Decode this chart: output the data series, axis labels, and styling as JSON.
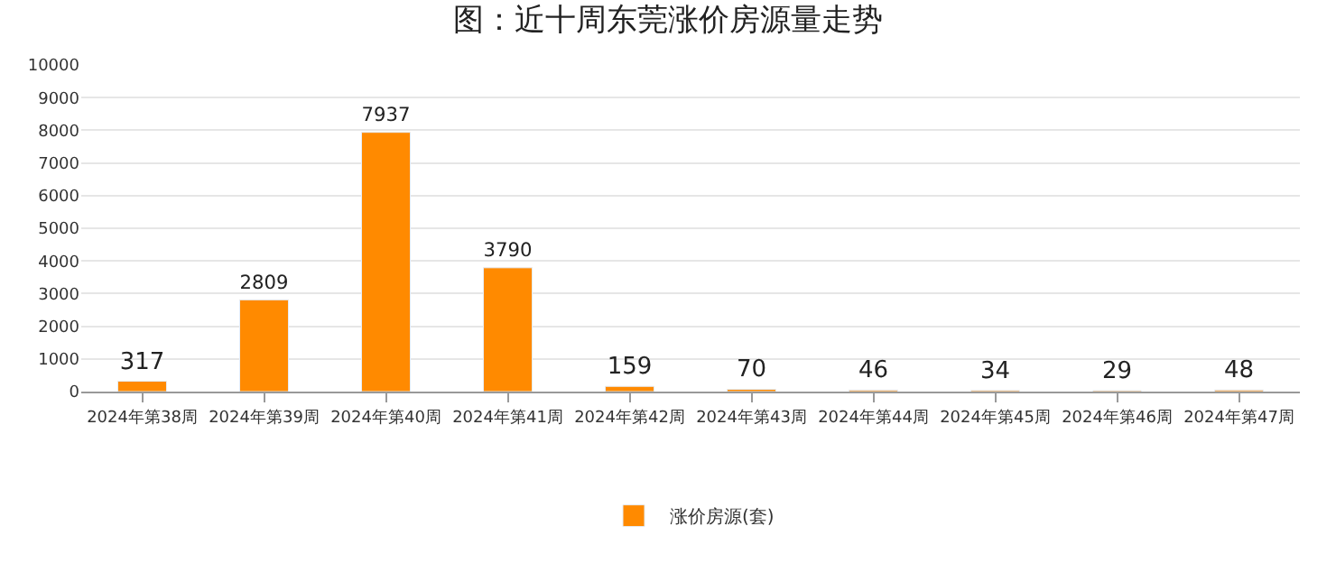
{
  "chart_data": {
    "type": "bar",
    "title": "图：近十周东莞涨价房源量走势",
    "categories": [
      "2024年第38周",
      "2024年第39周",
      "2024年第40周",
      "2024年第41周",
      "2024年第42周",
      "2024年第43周",
      "2024年第44周",
      "2024年第45周",
      "2024年第46周",
      "2024年第47周"
    ],
    "series": [
      {
        "name": "涨价房源(套)",
        "color": "#ff8a00",
        "values": [
          317,
          2809,
          7937,
          3790,
          159,
          70,
          46,
          34,
          29,
          48
        ]
      }
    ],
    "ylim": [
      0,
      10000
    ],
    "yticks": [
      0,
      1000,
      2000,
      3000,
      4000,
      5000,
      6000,
      7000,
      8000,
      9000,
      10000
    ],
    "grid": "y",
    "legend": "bottom",
    "data_labels": true
  }
}
